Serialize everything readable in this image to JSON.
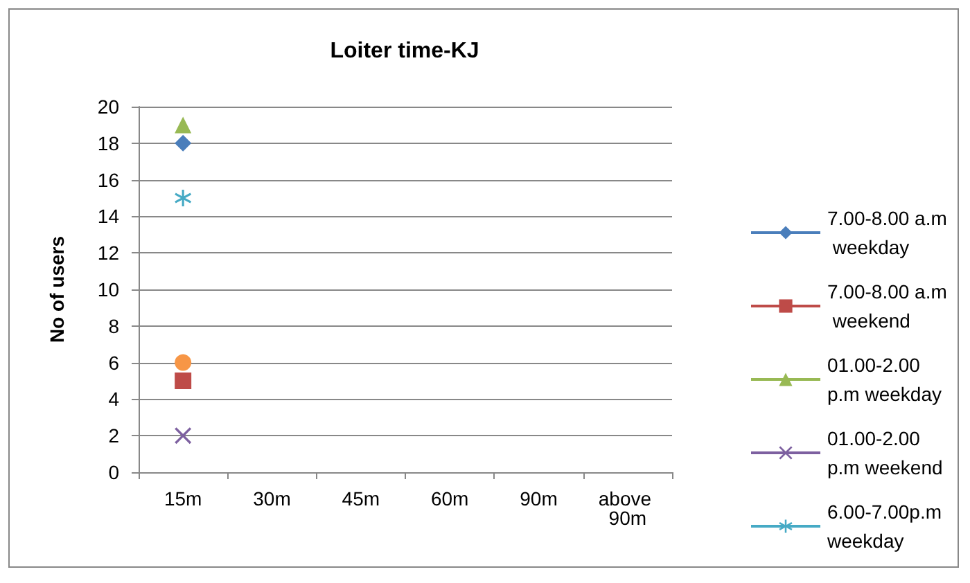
{
  "chart_data": {
    "type": "line",
    "title": "Loiter time-KJ",
    "ylabel": "No of users",
    "categories": [
      "15m",
      "30m",
      "45m",
      "60m",
      "90m",
      "above 90m"
    ],
    "ylim": [
      0,
      20
    ],
    "yticks": [
      0,
      2,
      4,
      6,
      8,
      10,
      12,
      14,
      16,
      18,
      20
    ],
    "grid": "y",
    "legend": "right",
    "series": [
      {
        "name": "7.00-8.00 a.m weekday",
        "color": "#4a7ebb",
        "marker": "diamond",
        "values": [
          18,
          null,
          null,
          null,
          null,
          null
        ]
      },
      {
        "name": "7.00-8.00 a.m weekend",
        "color": "#be4b48",
        "marker": "square",
        "values": [
          5,
          null,
          null,
          null,
          null,
          null
        ]
      },
      {
        "name": "01.00-2.00 p.m weekday",
        "color": "#98b954",
        "marker": "triangle",
        "values": [
          19,
          null,
          null,
          null,
          null,
          null
        ]
      },
      {
        "name": "01.00-2.00 p.m weekend",
        "color": "#7d60a0",
        "marker": "cross",
        "values": [
          2,
          null,
          null,
          null,
          null,
          null
        ]
      },
      {
        "name": "6.00-7.00p.m weekday",
        "color": "#46aac5",
        "marker": "star",
        "values": [
          15,
          null,
          null,
          null,
          null,
          null
        ]
      },
      {
        "color": "#f79646",
        "marker": "circle",
        "values": [
          6,
          null,
          null,
          null,
          null,
          null
        ]
      }
    ]
  }
}
